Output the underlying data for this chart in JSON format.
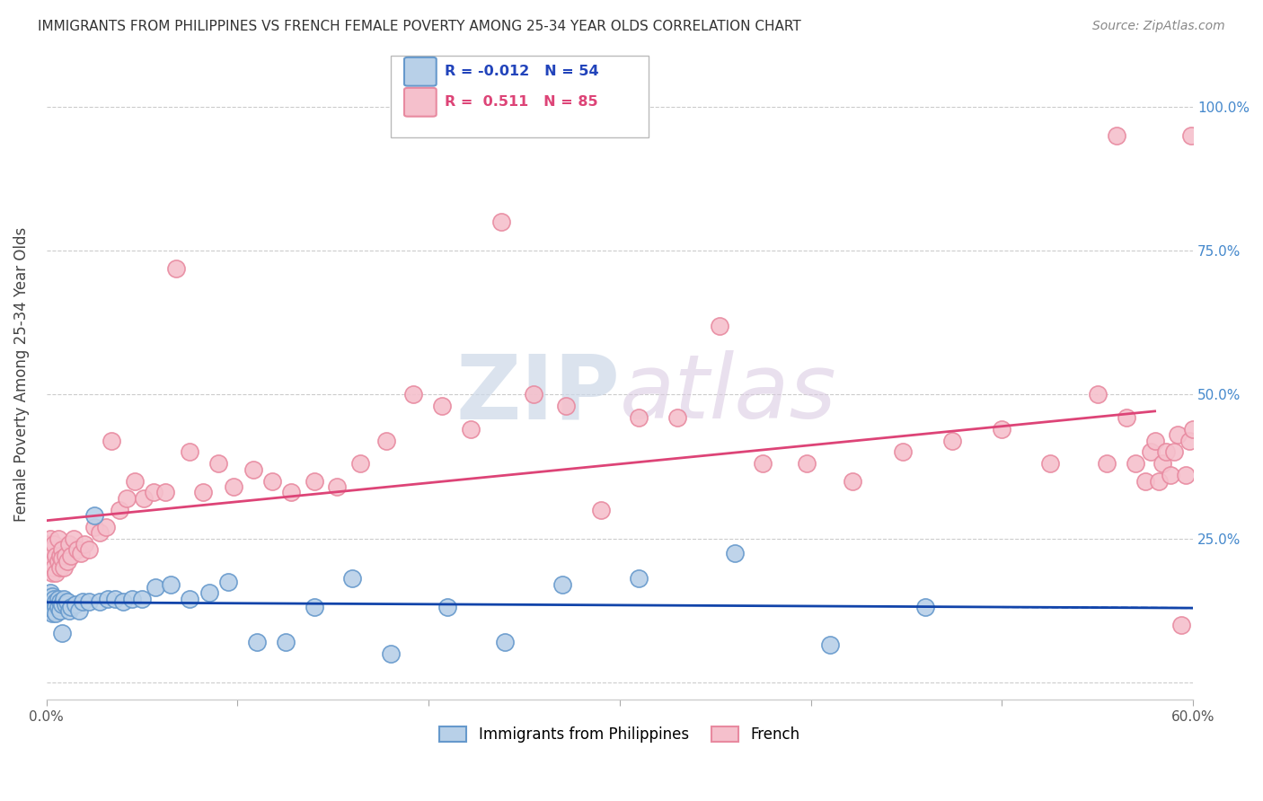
{
  "title": "IMMIGRANTS FROM PHILIPPINES VS FRENCH FEMALE POVERTY AMONG 25-34 YEAR OLDS CORRELATION CHART",
  "source": "Source: ZipAtlas.com",
  "ylabel": "Female Poverty Among 25-34 Year Olds",
  "xlim": [
    0.0,
    0.6
  ],
  "ylim": [
    -0.03,
    1.1
  ],
  "xticks": [
    0.0,
    0.1,
    0.2,
    0.3,
    0.4,
    0.5,
    0.6
  ],
  "xticklabels": [
    "0.0%",
    "",
    "",
    "",
    "",
    "",
    "60.0%"
  ],
  "yticks": [
    0.0,
    0.25,
    0.5,
    0.75,
    1.0
  ],
  "yticklabels_right": [
    "",
    "25.0%",
    "50.0%",
    "75.0%",
    "100.0%"
  ],
  "grid_color": "#cccccc",
  "background_color": "#ffffff",
  "philippines_color": "#b8d0e8",
  "philippines_edge_color": "#6699cc",
  "french_color": "#f5c0cc",
  "french_edge_color": "#e88aa0",
  "philippines_R": "-0.012",
  "philippines_N": "54",
  "french_R": "0.511",
  "french_N": "85",
  "philippines_line_color": "#1144aa",
  "french_line_color": "#dd4477",
  "watermark_color": "#ccd8e8",
  "philippines_x": [
    0.001,
    0.001,
    0.002,
    0.002,
    0.002,
    0.002,
    0.003,
    0.003,
    0.003,
    0.004,
    0.004,
    0.004,
    0.005,
    0.005,
    0.005,
    0.006,
    0.006,
    0.007,
    0.007,
    0.008,
    0.008,
    0.009,
    0.01,
    0.011,
    0.012,
    0.013,
    0.015,
    0.017,
    0.019,
    0.022,
    0.025,
    0.028,
    0.032,
    0.036,
    0.04,
    0.045,
    0.05,
    0.057,
    0.065,
    0.075,
    0.085,
    0.095,
    0.11,
    0.125,
    0.14,
    0.16,
    0.18,
    0.21,
    0.24,
    0.27,
    0.31,
    0.36,
    0.41,
    0.46
  ],
  "philippines_y": [
    0.135,
    0.145,
    0.14,
    0.125,
    0.155,
    0.13,
    0.14,
    0.12,
    0.15,
    0.135,
    0.125,
    0.145,
    0.14,
    0.13,
    0.12,
    0.145,
    0.13,
    0.14,
    0.125,
    0.135,
    0.085,
    0.145,
    0.135,
    0.14,
    0.125,
    0.13,
    0.135,
    0.125,
    0.14,
    0.14,
    0.29,
    0.14,
    0.145,
    0.145,
    0.14,
    0.145,
    0.145,
    0.165,
    0.17,
    0.145,
    0.155,
    0.175,
    0.07,
    0.07,
    0.13,
    0.18,
    0.05,
    0.13,
    0.07,
    0.17,
    0.18,
    0.225,
    0.065,
    0.13
  ],
  "french_x": [
    0.001,
    0.001,
    0.002,
    0.002,
    0.003,
    0.003,
    0.003,
    0.004,
    0.004,
    0.005,
    0.005,
    0.006,
    0.006,
    0.007,
    0.007,
    0.008,
    0.008,
    0.009,
    0.01,
    0.011,
    0.012,
    0.013,
    0.014,
    0.016,
    0.018,
    0.02,
    0.022,
    0.025,
    0.028,
    0.031,
    0.034,
    0.038,
    0.042,
    0.046,
    0.051,
    0.056,
    0.062,
    0.068,
    0.075,
    0.082,
    0.09,
    0.098,
    0.108,
    0.118,
    0.128,
    0.14,
    0.152,
    0.164,
    0.178,
    0.192,
    0.207,
    0.222,
    0.238,
    0.255,
    0.272,
    0.29,
    0.31,
    0.33,
    0.352,
    0.375,
    0.398,
    0.422,
    0.448,
    0.474,
    0.5,
    0.525,
    0.55,
    0.555,
    0.56,
    0.565,
    0.57,
    0.575,
    0.578,
    0.58,
    0.582,
    0.584,
    0.586,
    0.588,
    0.59,
    0.592,
    0.594,
    0.596,
    0.598,
    0.599,
    0.6
  ],
  "french_y": [
    0.22,
    0.24,
    0.2,
    0.25,
    0.19,
    0.21,
    0.23,
    0.24,
    0.2,
    0.22,
    0.19,
    0.21,
    0.25,
    0.22,
    0.2,
    0.23,
    0.215,
    0.2,
    0.22,
    0.21,
    0.24,
    0.22,
    0.25,
    0.23,
    0.225,
    0.24,
    0.23,
    0.27,
    0.26,
    0.27,
    0.42,
    0.3,
    0.32,
    0.35,
    0.32,
    0.33,
    0.33,
    0.72,
    0.4,
    0.33,
    0.38,
    0.34,
    0.37,
    0.35,
    0.33,
    0.35,
    0.34,
    0.38,
    0.42,
    0.5,
    0.48,
    0.44,
    0.8,
    0.5,
    0.48,
    0.3,
    0.46,
    0.46,
    0.62,
    0.38,
    0.38,
    0.35,
    0.4,
    0.42,
    0.44,
    0.38,
    0.5,
    0.38,
    0.95,
    0.46,
    0.38,
    0.35,
    0.4,
    0.42,
    0.35,
    0.38,
    0.4,
    0.36,
    0.4,
    0.43,
    0.1,
    0.36,
    0.42,
    0.95,
    0.44
  ]
}
